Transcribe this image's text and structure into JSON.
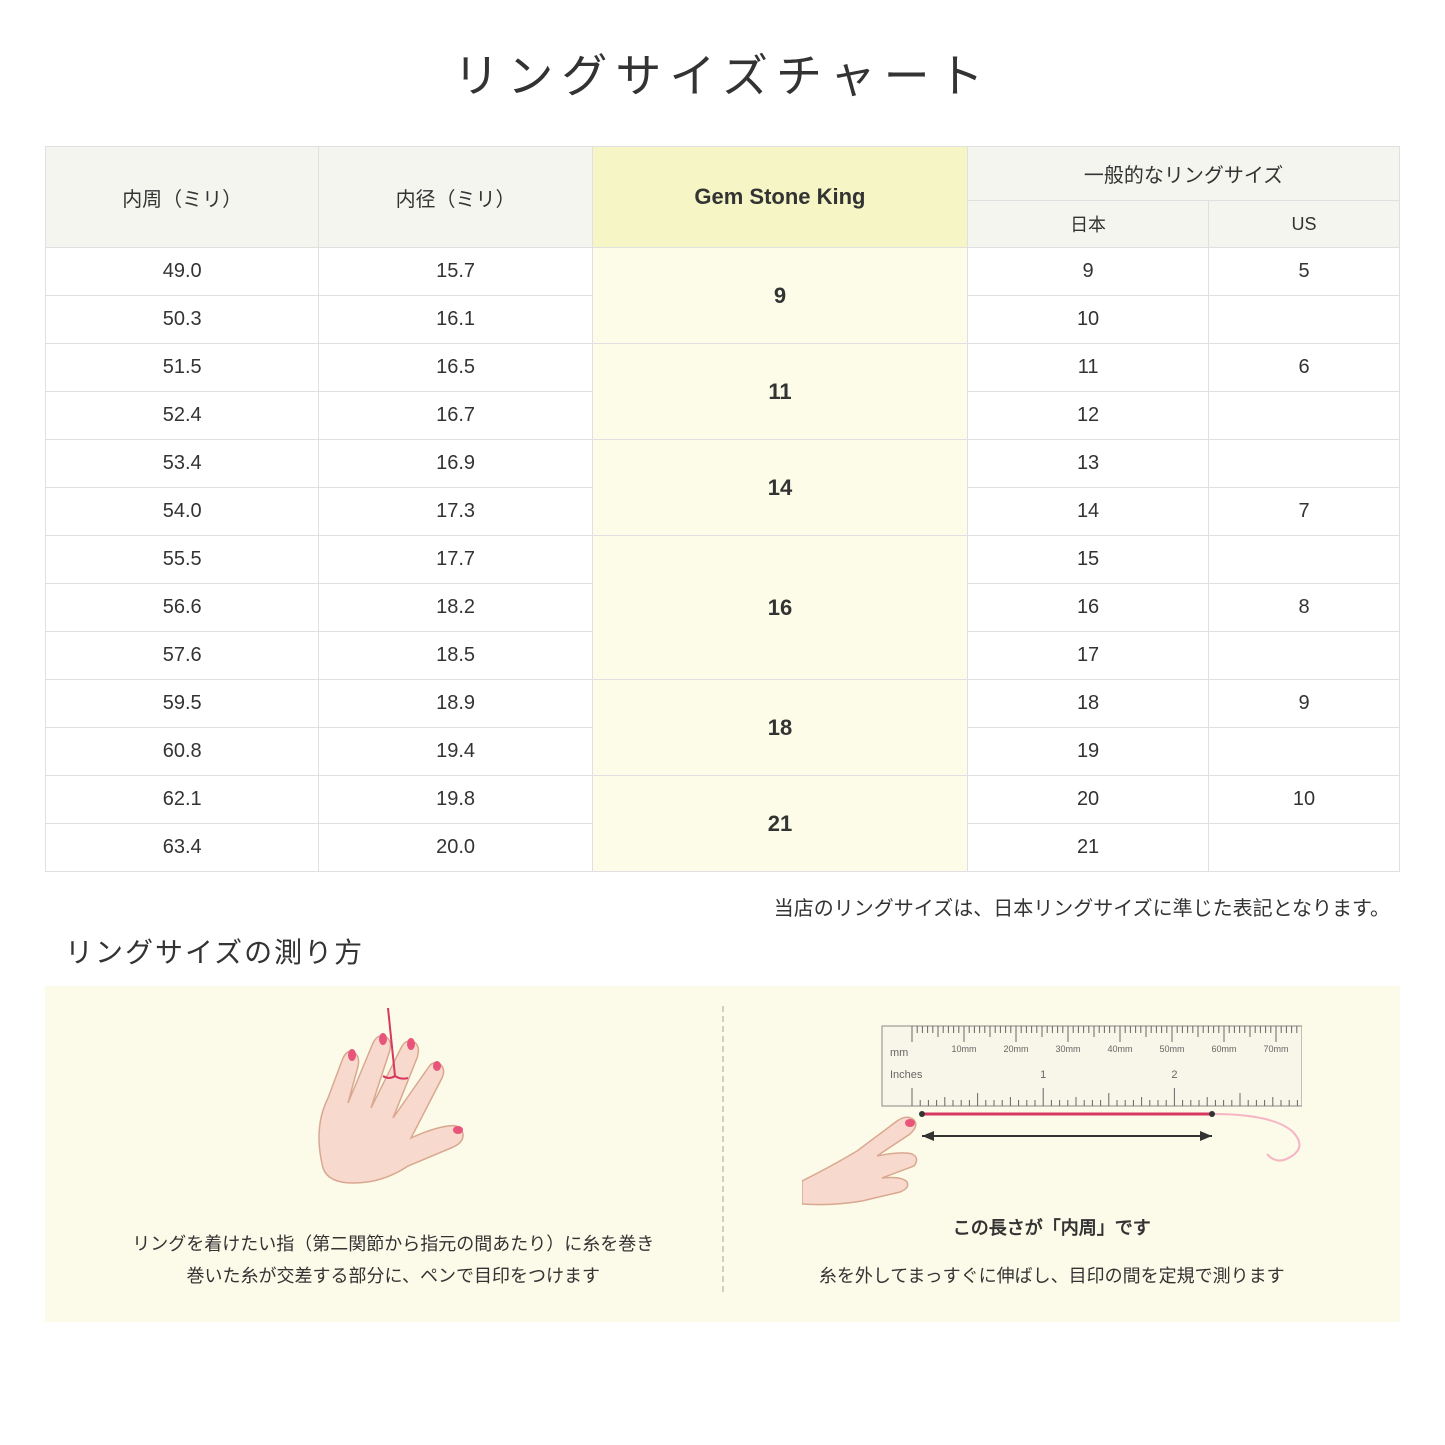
{
  "title": "リングサイズチャート",
  "headers": {
    "circumference": "内周（ミリ）",
    "diameter": "内径（ミリ）",
    "gemstone": "Gem Stone King",
    "general": "一般的なリングサイズ",
    "japan": "日本",
    "us": "US"
  },
  "rows": [
    {
      "circ": "49.0",
      "diam": "15.7",
      "gsk": "9",
      "gsk_span": 2,
      "jp": "9",
      "us": "5"
    },
    {
      "circ": "50.3",
      "diam": "16.1",
      "jp": "10",
      "us": ""
    },
    {
      "circ": "51.5",
      "diam": "16.5",
      "gsk": "11",
      "gsk_span": 2,
      "jp": "11",
      "us": "6"
    },
    {
      "circ": "52.4",
      "diam": "16.7",
      "jp": "12",
      "us": ""
    },
    {
      "circ": "53.4",
      "diam": "16.9",
      "gsk": "14",
      "gsk_span": 2,
      "jp": "13",
      "us": ""
    },
    {
      "circ": "54.0",
      "diam": "17.3",
      "jp": "14",
      "us": "7"
    },
    {
      "circ": "55.5",
      "diam": "17.7",
      "gsk": "16",
      "gsk_span": 3,
      "jp": "15",
      "us": ""
    },
    {
      "circ": "56.6",
      "diam": "18.2",
      "jp": "16",
      "us": "8"
    },
    {
      "circ": "57.6",
      "diam": "18.5",
      "jp": "17",
      "us": ""
    },
    {
      "circ": "59.5",
      "diam": "18.9",
      "gsk": "18",
      "gsk_span": 2,
      "jp": "18",
      "us": "9"
    },
    {
      "circ": "60.8",
      "diam": "19.4",
      "jp": "19",
      "us": ""
    },
    {
      "circ": "62.1",
      "diam": "19.8",
      "gsk": "21",
      "gsk_span": 2,
      "jp": "20",
      "us": "10"
    },
    {
      "circ": "63.4",
      "diam": "20.0",
      "jp": "21",
      "us": ""
    }
  ],
  "note": "当店のリングサイズは、日本リングサイズに準じた表記となります。",
  "measure": {
    "title": "リングサイズの測り方",
    "left_text1": "リングを着けたい指（第二関節から指元の間あたり）に糸を巻き",
    "left_text2": "巻いた糸が交差する部分に、ペンで目印をつけます",
    "right_label": "この長さが「内周」です",
    "right_text": "糸を外してまっすぐに伸ばし、目印の間を定規で測ります",
    "ruler_mm": "mm",
    "ruler_inches": "Inches",
    "ruler_mm_labels": [
      "10mm",
      "20mm",
      "30mm",
      "40mm",
      "50mm",
      "60mm",
      "70mm"
    ],
    "ruler_inch_labels": [
      "1",
      "2"
    ]
  },
  "colors": {
    "border": "#e0e0e0",
    "header_bg": "#f5f5f0",
    "highlight_header": "#f5f5c5",
    "highlight_cell": "#fcfce8",
    "measure_bg": "#fcfae8",
    "hand_fill": "#f8d9ce",
    "hand_stroke": "#d9a890",
    "nail": "#e8547a",
    "thread": "#d63860",
    "ruler_fill": "#f8f6e8",
    "ruler_stroke": "#888"
  }
}
